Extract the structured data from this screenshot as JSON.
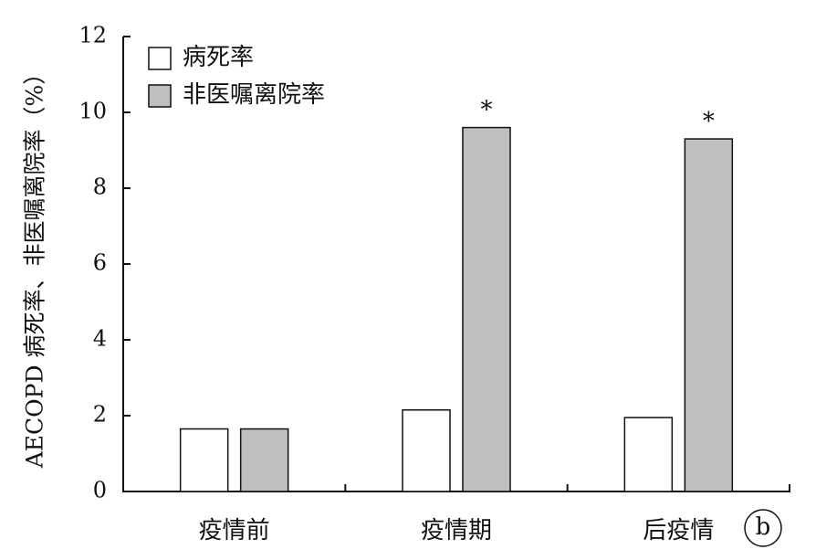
{
  "chart_data": {
    "type": "bar",
    "y_label": "AECOPD 病死率、非医嘱离院率（%）",
    "categories": [
      "疫情前",
      "疫情期",
      "后疫情"
    ],
    "series": [
      {
        "name": "病死率",
        "color": "#ffffff",
        "values": [
          1.65,
          2.15,
          1.95
        ]
      },
      {
        "name": "非医嘱离院率",
        "color": "#bfbfbf",
        "values": [
          1.65,
          9.6,
          9.3
        ],
        "markers": [
          null,
          "*",
          "*"
        ]
      }
    ],
    "ylim": [
      0,
      12
    ],
    "yticks": [
      0,
      2,
      4,
      6,
      8,
      10,
      12
    ],
    "grid": false,
    "legend": "top-left",
    "panel_label": "b"
  }
}
